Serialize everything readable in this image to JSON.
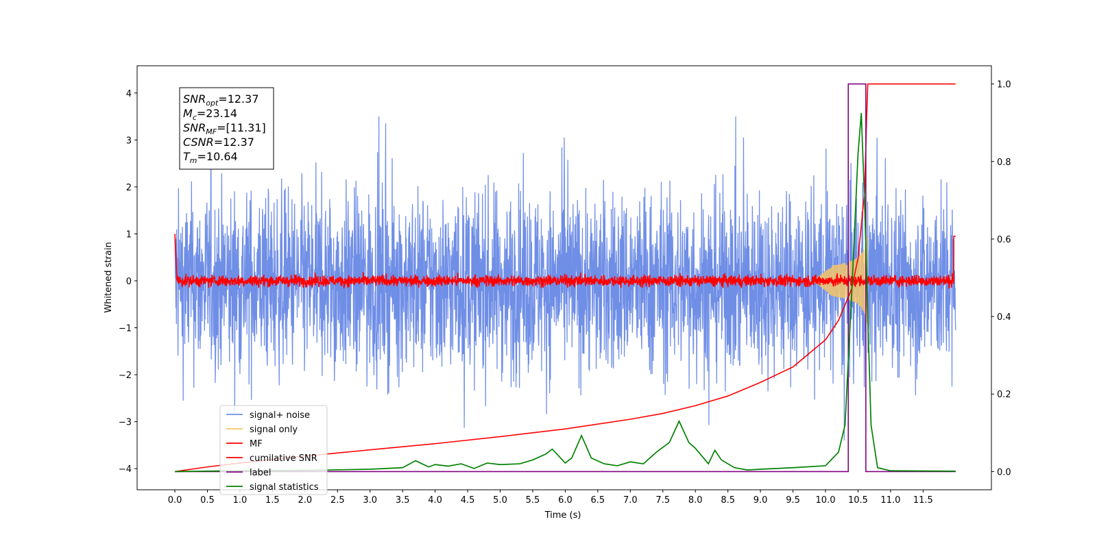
{
  "chart_data": {
    "type": "line",
    "xlabel": "Time (s)",
    "ylabel": "Whitened strain",
    "xlim": [
      -0.58,
      12.55
    ],
    "ylim": [
      -4.45,
      4.58
    ],
    "y2lim": [
      -0.047,
      1.047
    ],
    "xticks": [
      "0.0",
      "0.5",
      "1.0",
      "1.5",
      "2.0",
      "2.5",
      "3.0",
      "3.5",
      "4.0",
      "4.5",
      "5.0",
      "5.5",
      "6.0",
      "6.5",
      "7.0",
      "7.5",
      "8.0",
      "8.5",
      "9.0",
      "9.5",
      "10.0",
      "10.5",
      "11.0",
      "11.5"
    ],
    "yticks": [
      "4",
      "3",
      "2",
      "1",
      "0",
      "−1",
      "−2",
      "−3",
      "−4"
    ],
    "y2ticks": [
      "1.0",
      "0.8",
      "0.6",
      "0.4",
      "0.2",
      "0.0"
    ],
    "grid": false,
    "legend_position": "lower-left",
    "colors": {
      "signal_noise": "#6f8ee6",
      "signal_only": "#f5c56a",
      "mf": "#ff0000",
      "cumulative": "#ff0000",
      "label": "#800080",
      "statistics": "#008000"
    },
    "info_box": [
      {
        "base": "SNR",
        "sub": "opt",
        "value": "=12.37"
      },
      {
        "base": "M",
        "sub": "c",
        "value": "=23.14"
      },
      {
        "base": "SNR",
        "sub": "MF",
        "value": "=[11.31]"
      },
      {
        "base": "CSNR",
        "sub": "",
        "value": "=12.37"
      },
      {
        "base": "T",
        "sub": "m",
        "value": "=10.64"
      }
    ],
    "series": [
      {
        "name": "signal+ noise",
        "axis": "left",
        "kind": "noise",
        "envelope": [
          -3.4,
          3.5
        ]
      },
      {
        "name": "signal only",
        "axis": "left",
        "kind": "chirp",
        "peak_time": 10.64,
        "peak_amplitude": 1.05
      },
      {
        "name": "MF",
        "axis": "left",
        "kind": "noise-small",
        "envelope": [
          -0.15,
          0.2
        ]
      },
      {
        "name": "cumilative SNR",
        "axis": "right",
        "x": [
          0.0,
          0.5,
          1.0,
          2.0,
          3.0,
          4.0,
          5.0,
          6.0,
          7.0,
          7.5,
          8.0,
          8.5,
          9.0,
          9.5,
          10.0,
          10.2,
          10.4,
          10.5,
          10.6,
          10.63,
          10.65,
          12.0
        ],
        "y": [
          0.0,
          0.012,
          0.022,
          0.04,
          0.056,
          0.072,
          0.09,
          0.11,
          0.135,
          0.15,
          0.17,
          0.195,
          0.23,
          0.27,
          0.34,
          0.39,
          0.47,
          0.55,
          0.72,
          0.9,
          1.0,
          1.0
        ]
      },
      {
        "name": "label",
        "axis": "right",
        "x": [
          0.0,
          10.35,
          10.35,
          10.62,
          10.62,
          12.0
        ],
        "y": [
          0.0,
          0.0,
          1.0,
          1.0,
          0.0,
          0.0
        ]
      },
      {
        "name": "signal statistics",
        "axis": "right",
        "x": [
          0.0,
          1.0,
          2.0,
          3.0,
          3.5,
          3.7,
          3.9,
          4.0,
          4.2,
          4.4,
          4.6,
          4.8,
          5.0,
          5.3,
          5.5,
          5.7,
          5.8,
          6.0,
          6.1,
          6.25,
          6.4,
          6.6,
          6.8,
          7.0,
          7.2,
          7.4,
          7.6,
          7.75,
          7.9,
          8.0,
          8.2,
          8.3,
          8.4,
          8.6,
          8.8,
          9.0,
          9.5,
          10.0,
          10.2,
          10.3,
          10.4,
          10.5,
          10.55,
          10.6,
          10.65,
          10.7,
          10.8,
          11.0,
          12.0
        ],
        "y": [
          0.0,
          0.002,
          0.003,
          0.006,
          0.01,
          0.028,
          0.012,
          0.018,
          0.014,
          0.02,
          0.008,
          0.022,
          0.018,
          0.02,
          0.03,
          0.045,
          0.058,
          0.022,
          0.035,
          0.093,
          0.035,
          0.02,
          0.015,
          0.025,
          0.02,
          0.05,
          0.075,
          0.13,
          0.075,
          0.06,
          0.02,
          0.055,
          0.03,
          0.01,
          0.004,
          0.006,
          0.01,
          0.015,
          0.05,
          0.12,
          0.45,
          0.82,
          0.925,
          0.7,
          0.4,
          0.12,
          0.01,
          0.002,
          0.001
        ]
      }
    ]
  }
}
